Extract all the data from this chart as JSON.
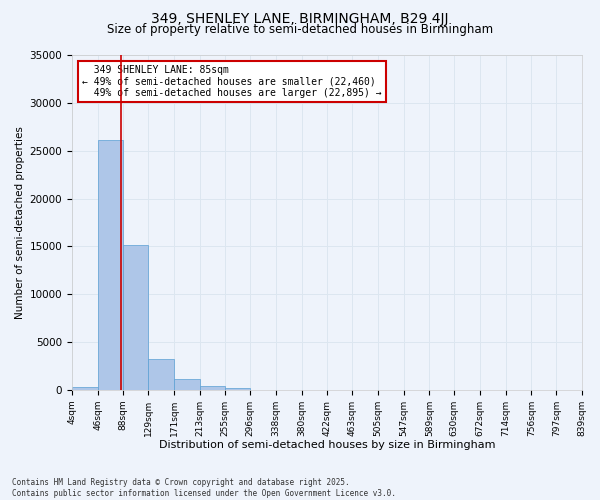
{
  "title_line1": "349, SHENLEY LANE, BIRMINGHAM, B29 4JJ",
  "title_line2": "Size of property relative to semi-detached houses in Birmingham",
  "xlabel": "Distribution of semi-detached houses by size in Birmingham",
  "ylabel": "Number of semi-detached properties",
  "property_size": 85,
  "property_label": "349 SHENLEY LANE: 85sqm",
  "pct_smaller": 49,
  "pct_larger": 49,
  "count_smaller": 22460,
  "count_larger": 22895,
  "bin_edges": [
    4,
    46,
    88,
    129,
    171,
    213,
    255,
    296,
    338,
    380,
    422,
    463,
    505,
    547,
    589,
    630,
    672,
    714,
    756,
    797,
    839
  ],
  "bar_values": [
    300,
    26100,
    15100,
    3250,
    1200,
    425,
    175,
    0,
    0,
    0,
    0,
    0,
    0,
    0,
    0,
    0,
    0,
    0,
    0,
    0
  ],
  "bar_color": "#aec6e8",
  "bar_edge_color": "#5a9fd4",
  "grid_color": "#dce6f0",
  "bg_color": "#eef3fb",
  "vline_color": "#cc0000",
  "annotation_box_color": "#cc0000",
  "ylim": [
    0,
    35000
  ],
  "yticks": [
    0,
    5000,
    10000,
    15000,
    20000,
    25000,
    30000,
    35000
  ],
  "footer": "Contains HM Land Registry data © Crown copyright and database right 2025.\nContains public sector information licensed under the Open Government Licence v3.0."
}
